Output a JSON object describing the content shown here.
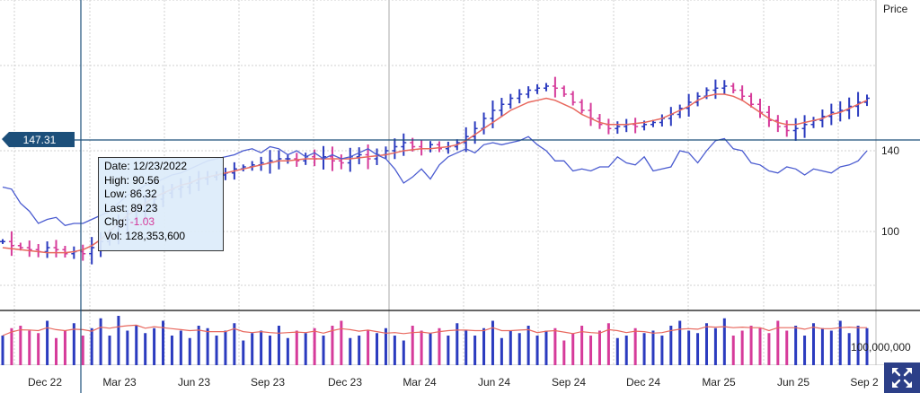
{
  "chart": {
    "y_axis_title": "Price",
    "crosshair_price_label": "147.31",
    "volume_label": "100,000,000",
    "y_ticks": [
      "140",
      "100"
    ],
    "x_ticks": [
      "Dec 22",
      "Mar 23",
      "Jun 23",
      "Sep 23",
      "Dec 23",
      "Mar 24",
      "Jun 24",
      "Sep 24",
      "Dec 24",
      "Mar 25",
      "Jun 25",
      "Sep 2"
    ],
    "colors": {
      "up_bar": "#2b3bbf",
      "down_bar": "#d63b9a",
      "moving_average": "#e8685e",
      "comparison_line": "#4a5bd0",
      "crosshair": "#1c4f7a",
      "grid": "#d0d0d0"
    }
  },
  "tooltip": {
    "date_label": "Date:",
    "date": "12/23/2022",
    "high_label": "High:",
    "high": "90.56",
    "low_label": "Low:",
    "low": "86.32",
    "last_label": "Last:",
    "last": "89.23",
    "chg_label": "Chg:",
    "chg": "-1.03",
    "vol_label": "Vol:",
    "vol": "128,353,600"
  },
  "controls": {
    "fullscreen_icon": "expand-arrows-icon"
  },
  "chart_data": {
    "type": "ohlc",
    "x_labels": [
      "Dec 22",
      "Mar 23",
      "Jun 23",
      "Sep 23",
      "Dec 23",
      "Mar 24",
      "Jun 24",
      "Sep 24",
      "Dec 24",
      "Mar 25",
      "Jun 25",
      "Sep 2"
    ],
    "y_ticks": [
      100,
      140
    ],
    "crosshair": {
      "date": "12/23/2022",
      "price": 147.31
    },
    "price_close": [
      95,
      93,
      92,
      91,
      90,
      92,
      91,
      89,
      90,
      89,
      92,
      95,
      99,
      103,
      106,
      110,
      113,
      116,
      119,
      121,
      122,
      124,
      126,
      127,
      128,
      129,
      131,
      132,
      133,
      134,
      135,
      136,
      136,
      135,
      137,
      136,
      137,
      135,
      134,
      137,
      138,
      136,
      138,
      140,
      142,
      144,
      142,
      141,
      143,
      141,
      142,
      144,
      147,
      151,
      156,
      160,
      163,
      166,
      168,
      170,
      171,
      172,
      171,
      168,
      164,
      160,
      156,
      153,
      151,
      152,
      153,
      152,
      153,
      154,
      156,
      158,
      161,
      164,
      167,
      170,
      171,
      172,
      170,
      167,
      163,
      159,
      155,
      152,
      150,
      151,
      153,
      155,
      157,
      159,
      160,
      162,
      164,
      166
    ],
    "moving_average": [
      92,
      91.5,
      91,
      90.5,
      90,
      89.5,
      89.5,
      89.5,
      90,
      91,
      93,
      96,
      100,
      104,
      108,
      111,
      114,
      117,
      119,
      121,
      123,
      124,
      126,
      127,
      128,
      129,
      130,
      131,
      132,
      133,
      134,
      135,
      135,
      135.5,
      136,
      136,
      136,
      136,
      136,
      136,
      136.5,
      137,
      137.5,
      138,
      139,
      140,
      140.5,
      141,
      141,
      141.5,
      142,
      143,
      145,
      148,
      151,
      154,
      157,
      160,
      162,
      164,
      165,
      166,
      165,
      163,
      161,
      158,
      156,
      154,
      153,
      153,
      153,
      153.5,
      154,
      155,
      156,
      158,
      160,
      162,
      165,
      167,
      168,
      168,
      167,
      165,
      162,
      159,
      156,
      154,
      153,
      153,
      154,
      155,
      156,
      158,
      159,
      161,
      163,
      165
    ],
    "comparison_line": [
      122,
      121,
      114,
      110,
      104,
      106,
      107,
      103,
      104,
      104,
      106,
      108,
      110,
      114,
      118,
      120,
      123,
      124,
      126,
      128,
      129,
      131,
      133,
      135,
      136,
      137,
      138,
      140,
      141,
      139,
      142,
      141,
      138,
      140,
      137,
      139,
      136,
      138,
      136,
      137,
      139,
      141,
      138,
      136,
      131,
      124,
      127,
      131,
      126,
      133,
      137,
      139,
      141,
      139,
      143,
      144,
      143,
      144,
      145,
      147,
      143,
      140,
      135,
      135,
      130,
      131,
      130,
      132,
      132,
      137,
      134,
      133,
      137,
      130,
      131,
      132,
      140,
      139,
      134,
      140,
      145,
      146,
      141,
      140,
      134,
      133,
      130,
      129,
      132,
      131,
      128,
      131,
      130,
      129,
      132,
      133,
      135,
      140
    ],
    "volume_relative": [
      0.6,
      0.75,
      0.8,
      0.7,
      0.65,
      0.9,
      0.55,
      0.7,
      0.85,
      0.6,
      0.75,
      0.95,
      0.6,
      1.0,
      0.7,
      0.8,
      0.65,
      0.75,
      0.9,
      0.6,
      0.7,
      0.55,
      0.8,
      0.75,
      0.6,
      0.7,
      0.85,
      0.5,
      0.65,
      0.7,
      0.6,
      0.8,
      0.55,
      0.7,
      0.65,
      0.75,
      0.6,
      0.8,
      0.9,
      0.55,
      0.6,
      0.7,
      0.65,
      0.75,
      0.6,
      0.5,
      0.8,
      0.7,
      0.65,
      0.75,
      0.6,
      0.85,
      0.7,
      0.6,
      0.75,
      0.9,
      0.55,
      0.7,
      0.65,
      0.8,
      0.6,
      0.7,
      0.75,
      0.5,
      0.65,
      0.8,
      0.6,
      0.7,
      0.85,
      0.55,
      0.6,
      0.75,
      0.65,
      0.7,
      0.6,
      0.8,
      0.9,
      0.7,
      0.65,
      0.85,
      0.75,
      0.95,
      0.6,
      0.7,
      0.8,
      0.75,
      0.65,
      0.9,
      0.7,
      0.8,
      0.6,
      0.85,
      0.75,
      0.7,
      0.9,
      0.65,
      0.8,
      0.75
    ]
  }
}
